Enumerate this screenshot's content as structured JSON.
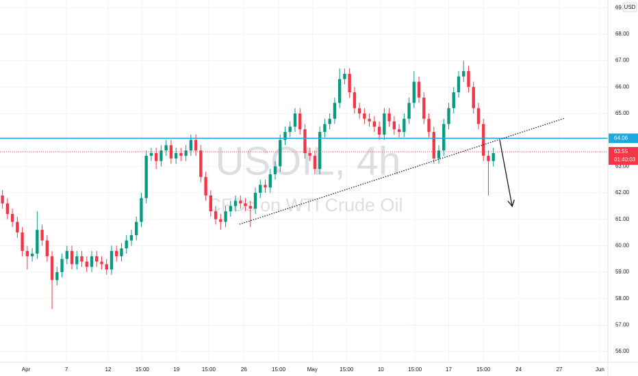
{
  "chart_data": {
    "type": "candlestick",
    "watermark": {
      "symbol": "USOIL, 4h",
      "description": "CFDs on WTI Crude Oil"
    },
    "currency": "USD",
    "series": [
      {
        "up_color": "#089981",
        "down_color": "#f23645",
        "open": [
          61.9,
          61.6,
          61.2,
          60.9,
          60.5,
          59.8,
          59.6,
          59.7,
          60.6,
          60.2,
          59.6,
          58.7,
          59.0,
          59.5,
          59.8,
          59.3,
          59.6,
          59.4,
          59.2,
          59.6,
          59.4,
          59.3,
          59.1,
          59.8,
          59.6,
          59.9,
          60.2,
          60.4,
          60.9,
          61.8,
          63.4,
          63.5,
          63.2,
          63.6,
          63.8,
          63.3,
          63.5,
          63.4,
          63.6,
          64.0,
          63.6,
          62.6,
          61.9,
          61.3,
          61.0,
          60.9,
          61.3,
          61.5,
          61.7,
          61.6,
          61.5,
          61.4,
          62.0,
          62.3,
          62.2,
          62.7,
          63.0,
          64.0,
          64.3,
          64.5,
          65.0,
          64.4,
          63.5,
          63.4,
          62.9,
          64.3,
          64.6,
          64.8,
          65.4,
          66.3,
          66.5,
          65.8,
          65.2,
          65.0,
          64.8,
          64.7,
          64.5,
          64.2,
          65.0,
          64.7,
          64.4,
          64.3,
          64.8,
          65.4,
          66.2,
          65.6,
          64.8,
          64.3,
          63.3,
          63.6,
          64.6,
          65.2,
          65.8,
          66.4,
          66.6,
          66.0,
          65.2,
          64.6,
          63.4,
          63.2
        ],
        "high": [
          62.1,
          61.8,
          61.4,
          61.1,
          60.7,
          60.0,
          59.9,
          61.3,
          60.8,
          60.4,
          59.8,
          59.2,
          59.7,
          60.0,
          60.0,
          59.8,
          59.8,
          59.6,
          59.8,
          59.8,
          59.6,
          59.5,
          60.0,
          60.0,
          60.1,
          60.4,
          60.6,
          61.1,
          62.0,
          63.6,
          63.7,
          63.7,
          63.8,
          64.0,
          64.0,
          63.7,
          63.7,
          63.8,
          64.2,
          64.2,
          63.8,
          62.8,
          62.1,
          61.5,
          61.2,
          61.5,
          61.7,
          61.9,
          61.9,
          61.8,
          61.7,
          62.2,
          62.5,
          62.5,
          62.9,
          63.2,
          64.2,
          64.5,
          64.7,
          65.2,
          65.2,
          64.6,
          63.7,
          63.6,
          64.5,
          64.8,
          65.0,
          65.6,
          66.7,
          66.7,
          66.7,
          66.0,
          65.4,
          65.2,
          65.0,
          64.9,
          64.7,
          65.2,
          65.2,
          64.9,
          64.6,
          65.0,
          65.6,
          66.6,
          66.4,
          65.8,
          65.0,
          64.5,
          63.8,
          64.8,
          65.4,
          66.0,
          66.6,
          67.0,
          66.8,
          66.2,
          65.4,
          64.8,
          63.6,
          63.7
        ],
        "low": [
          61.4,
          61.0,
          60.7,
          60.3,
          59.6,
          59.1,
          59.4,
          59.5,
          60.0,
          59.4,
          57.6,
          58.5,
          58.8,
          59.3,
          59.1,
          59.1,
          59.2,
          59.0,
          59.0,
          59.2,
          59.1,
          58.9,
          58.9,
          59.4,
          59.4,
          59.7,
          60.0,
          60.2,
          60.7,
          61.6,
          63.2,
          62.9,
          63.0,
          63.4,
          63.1,
          63.1,
          63.2,
          63.2,
          63.4,
          63.4,
          62.4,
          61.7,
          61.1,
          60.8,
          60.6,
          60.7,
          61.1,
          61.3,
          61.4,
          61.3,
          60.7,
          61.2,
          61.8,
          62.0,
          62.0,
          62.5,
          62.8,
          63.8,
          64.1,
          64.3,
          64.2,
          63.3,
          63.2,
          62.7,
          62.7,
          64.1,
          64.4,
          64.6,
          65.2,
          66.1,
          65.6,
          65.0,
          64.8,
          64.6,
          64.5,
          64.3,
          64.0,
          64.0,
          64.5,
          64.2,
          64.1,
          64.1,
          64.6,
          65.2,
          65.4,
          64.6,
          64.1,
          63.1,
          63.1,
          63.4,
          64.4,
          65.0,
          65.6,
          66.2,
          65.8,
          65.0,
          64.4,
          63.2,
          61.9,
          63.0
        ],
        "close": [
          61.6,
          61.2,
          60.9,
          60.5,
          59.8,
          59.6,
          59.7,
          60.6,
          60.2,
          59.6,
          58.7,
          59.0,
          59.5,
          59.8,
          59.3,
          59.6,
          59.4,
          59.2,
          59.6,
          59.4,
          59.3,
          59.1,
          59.8,
          59.6,
          59.9,
          60.2,
          60.4,
          60.9,
          61.8,
          63.4,
          63.5,
          63.2,
          63.6,
          63.8,
          63.3,
          63.5,
          63.4,
          63.6,
          64.0,
          63.6,
          62.6,
          61.9,
          61.3,
          61.0,
          60.9,
          61.3,
          61.5,
          61.7,
          61.6,
          61.5,
          61.4,
          62.0,
          62.3,
          62.2,
          62.7,
          63.0,
          64.0,
          64.3,
          64.5,
          65.0,
          64.4,
          63.5,
          63.4,
          62.9,
          64.3,
          64.6,
          64.8,
          65.4,
          66.3,
          66.5,
          65.8,
          65.2,
          65.0,
          64.8,
          64.7,
          64.5,
          64.2,
          65.0,
          64.7,
          64.4,
          64.3,
          64.8,
          65.4,
          66.2,
          65.6,
          64.8,
          64.3,
          63.3,
          63.6,
          64.6,
          65.2,
          65.8,
          66.4,
          66.6,
          66.0,
          65.2,
          64.6,
          63.4,
          63.2,
          63.5
        ]
      }
    ],
    "xlim": [
      0,
      122.6
    ],
    "xticks": [
      {
        "value": 5.25,
        "label": "Apr"
      },
      {
        "value": 13.4,
        "label": "7"
      },
      {
        "value": 21.8,
        "label": "12"
      },
      {
        "value": 28.7,
        "label": "15:00"
      },
      {
        "value": 35.6,
        "label": "19"
      },
      {
        "value": 42.1,
        "label": "15:00"
      },
      {
        "value": 49.2,
        "label": "26"
      },
      {
        "value": 56.2,
        "label": "15:00"
      },
      {
        "value": 63.0,
        "label": "May"
      },
      {
        "value": 69.9,
        "label": "15:00"
      },
      {
        "value": 76.8,
        "label": "10"
      },
      {
        "value": 83.7,
        "label": "15:00"
      },
      {
        "value": 90.5,
        "label": "17"
      },
      {
        "value": 97.5,
        "label": "15:00"
      },
      {
        "value": 104.6,
        "label": "24"
      },
      {
        "value": 112.8,
        "label": "27"
      },
      {
        "value": 121.0,
        "label": "Jun"
      }
    ],
    "ylim": [
      55.59,
      69.29
    ],
    "yticks": [
      {
        "value": 56,
        "label": "56.00"
      },
      {
        "value": 57,
        "label": "57.00"
      },
      {
        "value": 58,
        "label": "58.00"
      },
      {
        "value": 59,
        "label": "59.00"
      },
      {
        "value": 60,
        "label": "60.00"
      },
      {
        "value": 61,
        "label": "61.00"
      },
      {
        "value": 62,
        "label": "62.00"
      },
      {
        "value": 63,
        "label": "63.00"
      },
      {
        "value": 64,
        "label": "64.00"
      },
      {
        "value": 65,
        "label": "65.00"
      },
      {
        "value": 66,
        "label": "66.00"
      },
      {
        "value": 67,
        "label": "67.00"
      },
      {
        "value": 68,
        "label": "68.00"
      },
      {
        "value": 69,
        "label": "69.00"
      }
    ],
    "grid": true,
    "horizontal_line": {
      "value": 64.06,
      "label": "64.06",
      "color": "#1ea8e0"
    },
    "last_price": {
      "value": 63.55,
      "label": "63.55",
      "countdown": "01:40:03",
      "color": "#f23645"
    },
    "trendline": {
      "x": [
        48.3,
        113.9
      ],
      "y": [
        60.81,
        64.82
      ]
    },
    "arrow": {
      "x": [
        100.8,
        103.3
      ],
      "y": [
        63.99,
        61.49
      ]
    }
  }
}
